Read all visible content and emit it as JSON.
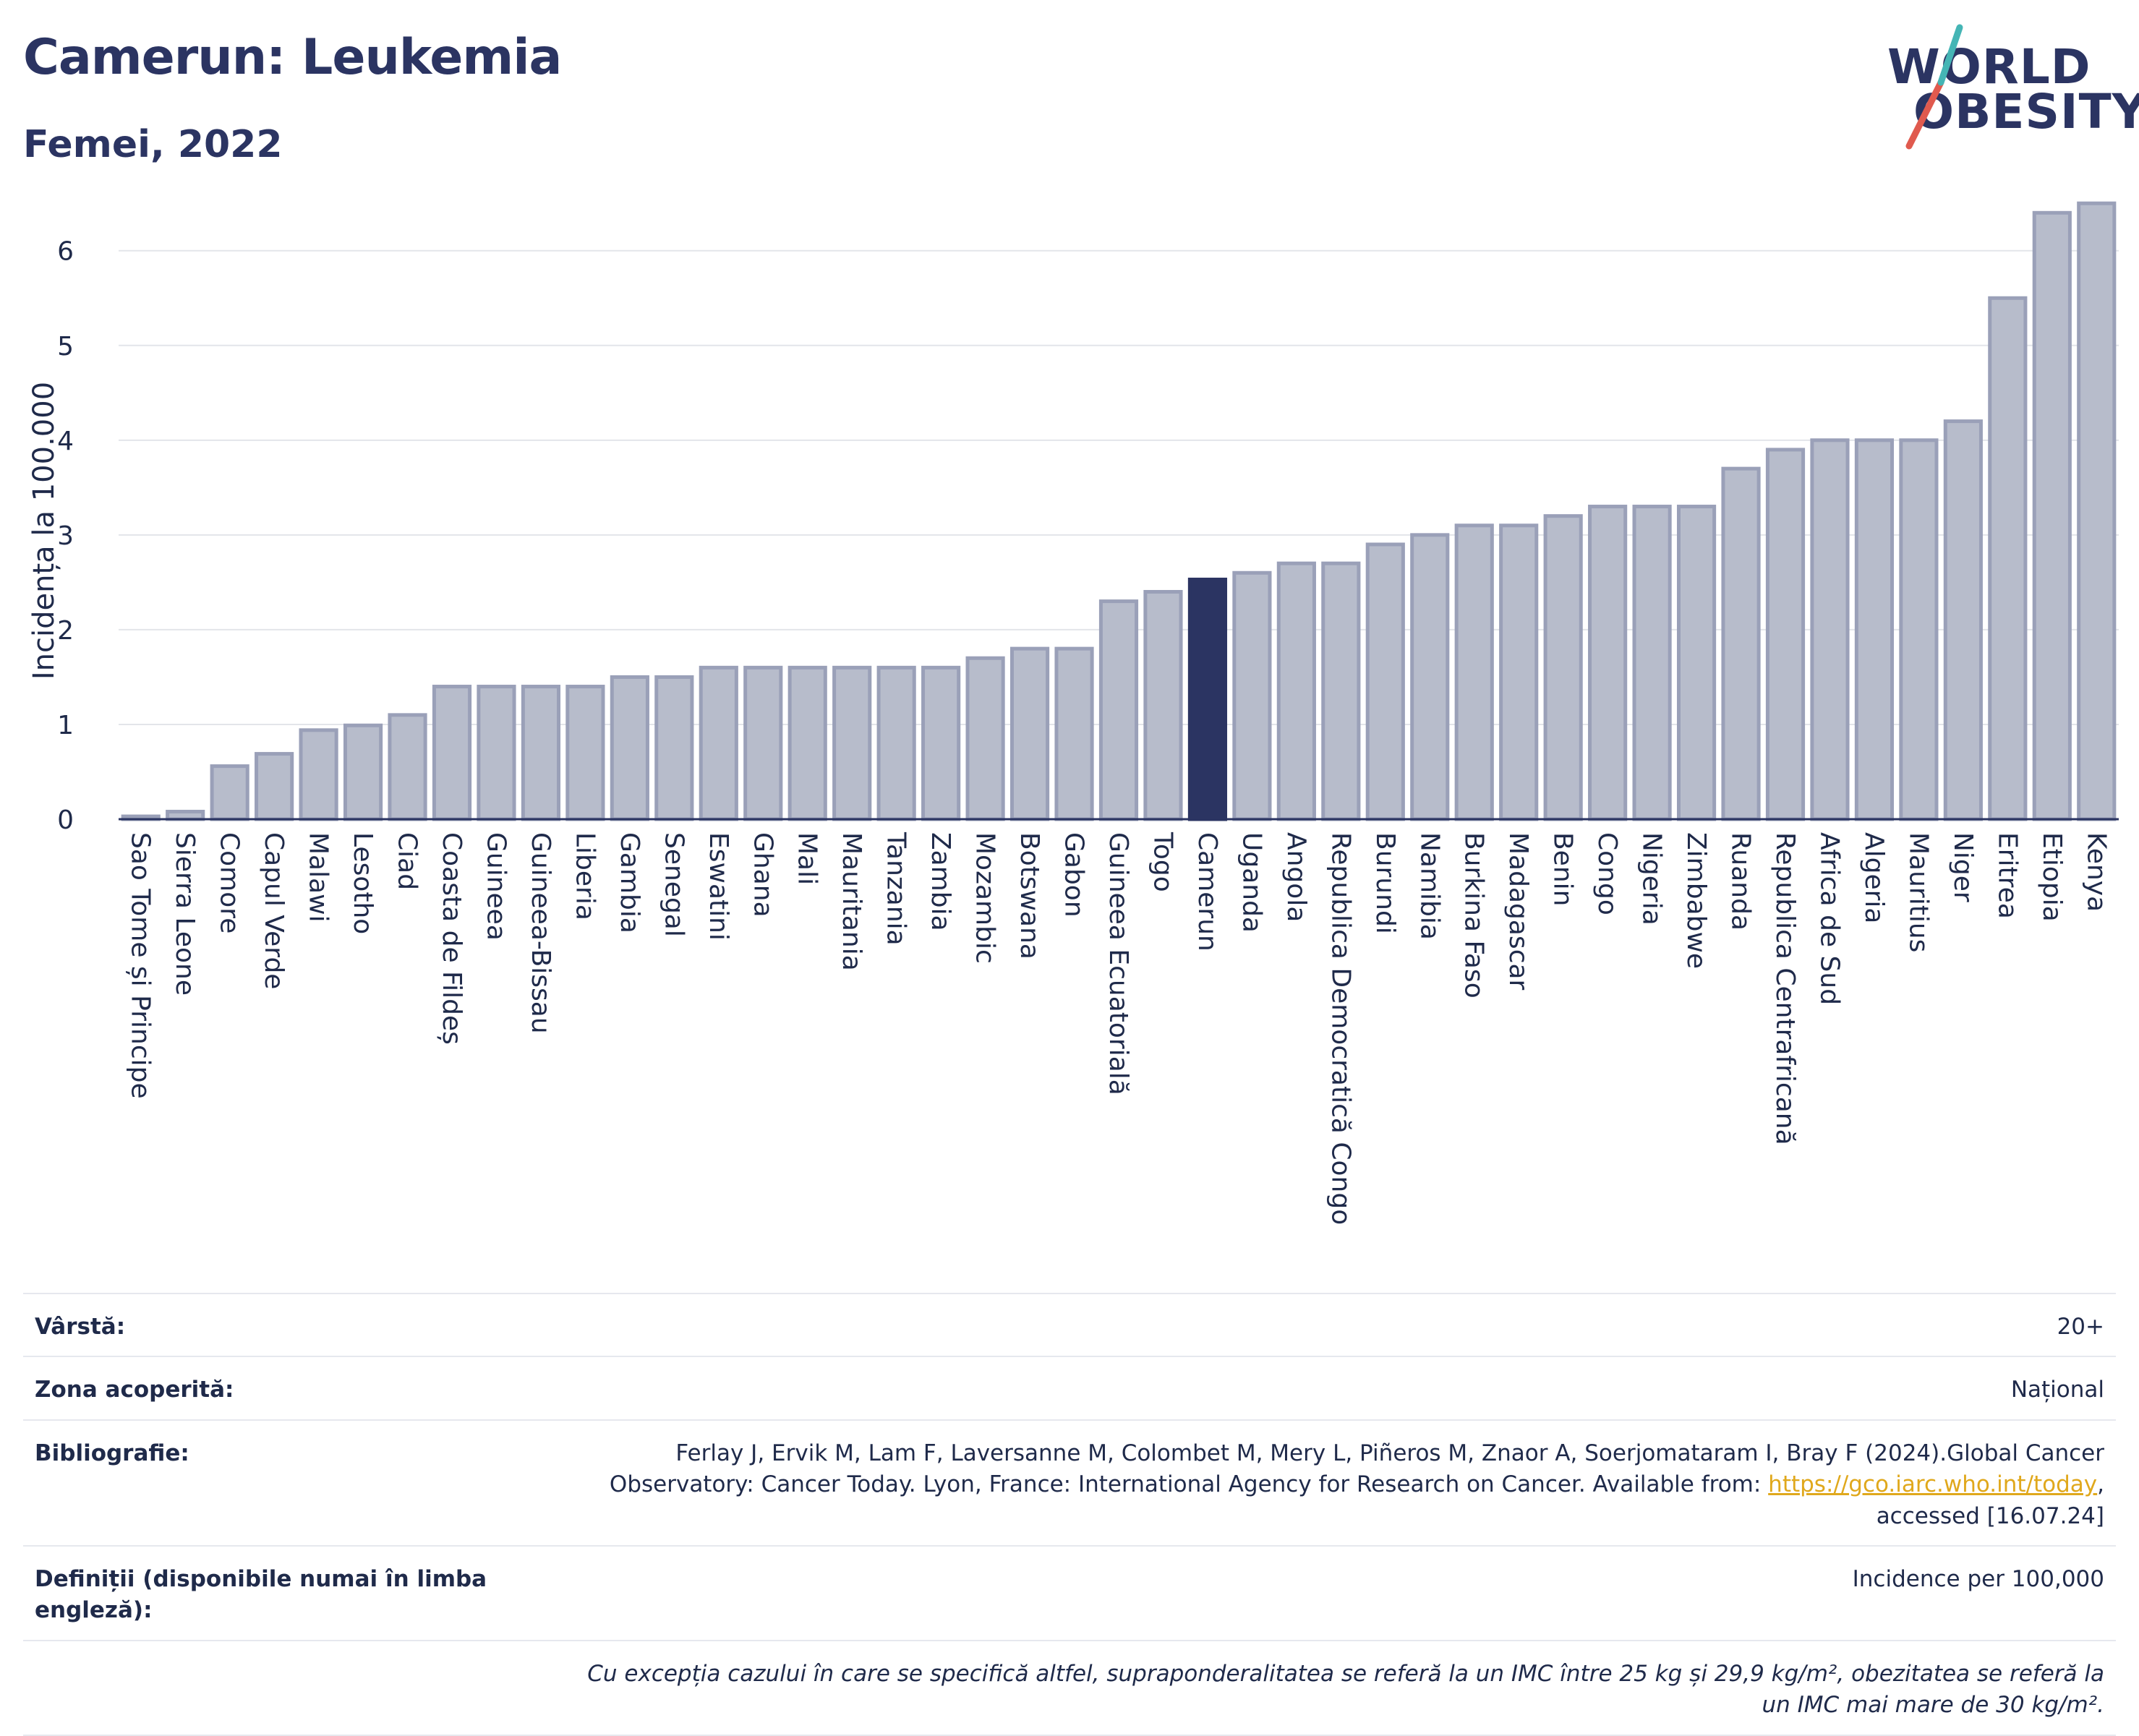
{
  "header": {
    "title": "Camerun: Leukemia",
    "subtitle": "Femei, 2022"
  },
  "logo": {
    "line1": "WORLD",
    "line2": "OBESITY",
    "slash_colors": [
      "#e05a4e",
      "#45b5b5"
    ]
  },
  "colors": {
    "bar": "#b7bccb",
    "bar_stroke": "#9aa0b8",
    "highlight": "#2b3462",
    "grid": "#e3e5ea",
    "axis": "#2b3462"
  },
  "chart_data": {
    "type": "bar",
    "title": "Camerun: Leukemia",
    "subtitle": "Femei, 2022",
    "ylabel": "Incidența la 100.000",
    "xlabel": "",
    "ylim": [
      0,
      6.7
    ],
    "yticks": [
      0,
      1,
      2,
      3,
      4,
      5,
      6
    ],
    "grid": true,
    "highlight": "Camerun",
    "categories": [
      "Sao Tome și Principe",
      "Sierra Leone",
      "Comore",
      "Capul Verde",
      "Malawi",
      "Lesotho",
      "Ciad",
      "Coasta de Fildeș",
      "Guineea",
      "Guineea-Bissau",
      "Liberia",
      "Gambia",
      "Senegal",
      "Eswatini",
      "Ghana",
      "Mali",
      "Mauritania",
      "Tanzania",
      "Zambia",
      "Mozambic",
      "Botswana",
      "Gabon",
      "Guineea Ecuatorială",
      "Togo",
      "Camerun",
      "Uganda",
      "Angola",
      "Republica Democratică Congo",
      "Burundi",
      "Namibia",
      "Burkina Faso",
      "Madagascar",
      "Benin",
      "Congo",
      "Nigeria",
      "Zimbabwe",
      "Ruanda",
      "Republica Centrafricană",
      "Africa de Sud",
      "Algeria",
      "Mauritius",
      "Niger",
      "Eritrea",
      "Etiopia",
      "Kenya"
    ],
    "values": [
      0.03,
      0.08,
      0.56,
      0.69,
      0.94,
      0.99,
      1.1,
      1.4,
      1.4,
      1.4,
      1.4,
      1.5,
      1.5,
      1.6,
      1.6,
      1.6,
      1.6,
      1.6,
      1.6,
      1.7,
      1.8,
      1.8,
      2.3,
      2.4,
      2.53,
      2.6,
      2.7,
      2.7,
      2.9,
      3.0,
      3.1,
      3.1,
      3.2,
      3.3,
      3.3,
      3.3,
      3.7,
      3.9,
      4.0,
      4.0,
      4.0,
      4.2,
      5.5,
      6.4,
      6.5
    ]
  },
  "info": {
    "rows": [
      {
        "key": "Vârstă:",
        "value": "20+"
      },
      {
        "key": "Zona acoperită:",
        "value": "Național"
      },
      {
        "key": "Bibliografie:",
        "value_pre": "Ferlay J, Ervik M, Lam F, Laversanne M, Colombet M, Mery L, Piñeros M, Znaor A, Soerjomataram I, Bray F (2024).Global Cancer Observatory: Cancer Today. Lyon, France: International Agency for Research on Cancer. Available from: ",
        "link": "https://gco.iarc.who.int/today",
        "value_post": ", accessed [16.07.24]"
      },
      {
        "key": "Definiții (disponibile numai în limba engleză):",
        "value": "Incidence per 100,000"
      }
    ],
    "note": "Cu excepția cazului în care se specifică altfel, supraponderalitatea se referă la un IMC între 25 kg și 29,9 kg/m², obezitatea se referă la un IMC mai mare de 30 kg/m²."
  }
}
